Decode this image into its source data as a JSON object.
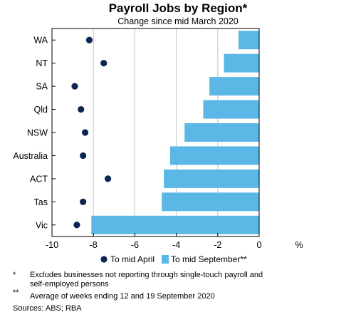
{
  "chart_data": {
    "type": "bar",
    "title": "Payroll Jobs by Region*",
    "subtitle": "Change since mid March 2020",
    "orientation": "horizontal",
    "categories": [
      "WA",
      "NT",
      "SA",
      "Qld",
      "NSW",
      "Australia",
      "ACT",
      "Tas",
      "Vic"
    ],
    "series": [
      {
        "name": "To mid April",
        "kind": "dot",
        "color": "#0d2550",
        "values": [
          -8.2,
          -7.5,
          -8.9,
          -8.6,
          -8.4,
          -8.5,
          -7.3,
          -8.5,
          -8.8
        ]
      },
      {
        "name": "To mid September**",
        "kind": "bar",
        "color": "#5bb7e6",
        "values": [
          -1.0,
          -1.7,
          -2.4,
          -2.7,
          -3.6,
          -4.3,
          -4.6,
          -4.7,
          -8.1
        ]
      }
    ],
    "xlim": [
      -10,
      0
    ],
    "xticks": [
      "-10",
      "-8",
      "-6",
      "-4",
      "-2",
      "0"
    ],
    "xunit": "%",
    "grid": true,
    "legend_position": "bottom"
  },
  "notes": {
    "n1_mark": "*",
    "n1_text": "Excludes businesses not reporting through single-touch payroll and self-employed persons",
    "n2_mark": "**",
    "n2_text": "Average of weeks ending 12 and 19 September 2020",
    "sources": "Sources: ABS; RBA"
  }
}
